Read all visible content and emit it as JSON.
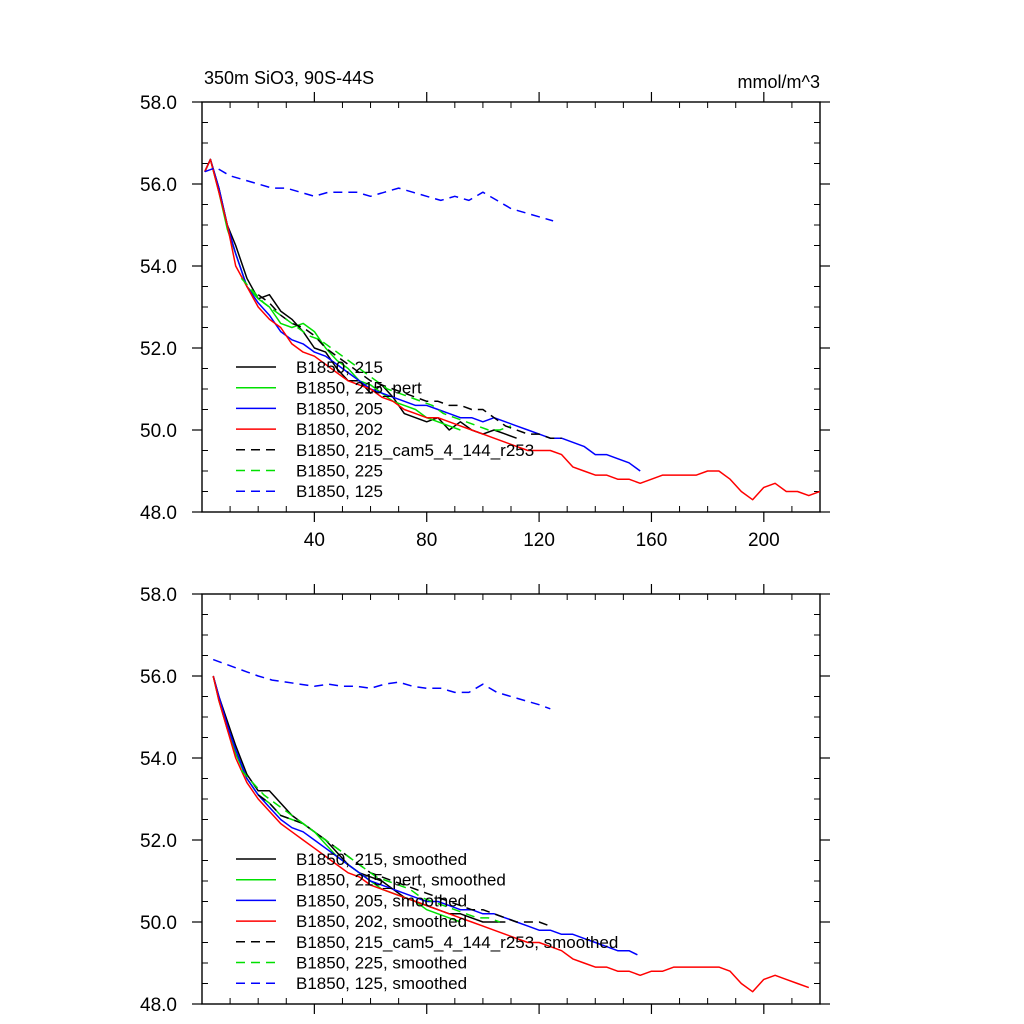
{
  "chart_data": [
    {
      "type": "line",
      "title_left": "350m SiO3, 90S-44S",
      "title_right": "mmol/m^3",
      "xlim": [
        0,
        220
      ],
      "ylim": [
        48.0,
        58.0
      ],
      "x_ticks": [
        40,
        80,
        120,
        160,
        200
      ],
      "x_tick_labels": [
        "40",
        "80",
        "120",
        "160",
        "200"
      ],
      "y_ticks": [
        48,
        50,
        52,
        54,
        56,
        58
      ],
      "y_tick_labels": [
        "48.0",
        "50.0",
        "52.0",
        "54.0",
        "56.0",
        "58.0"
      ],
      "legend_position": "bottom-left",
      "series": [
        {
          "name": "B1850, 215",
          "color": "#000000",
          "dashed": false,
          "x": [
            1,
            3,
            6,
            9,
            12,
            16,
            20,
            24,
            28,
            32,
            36,
            40,
            44,
            48,
            52,
            56,
            60,
            64,
            68,
            72,
            76,
            80,
            84,
            88,
            92,
            96,
            100,
            104,
            108,
            112
          ],
          "y": [
            56.3,
            56.6,
            55.9,
            55.0,
            54.5,
            53.7,
            53.2,
            53.3,
            52.9,
            52.7,
            52.4,
            52.0,
            51.9,
            51.5,
            51.2,
            51.2,
            50.9,
            51.1,
            50.8,
            50.4,
            50.3,
            50.2,
            50.3,
            50.0,
            50.2,
            50.0,
            49.9,
            50.0,
            49.9,
            49.8
          ]
        },
        {
          "name": "B1850, 215_pert",
          "color": "#00e000",
          "dashed": false,
          "x": [
            1,
            3,
            6,
            9,
            12,
            16,
            20,
            24,
            28,
            32,
            36,
            40,
            44,
            48,
            52,
            56,
            60,
            64,
            68,
            72,
            76,
            80,
            84,
            88,
            92
          ],
          "y": [
            56.3,
            56.6,
            55.8,
            54.9,
            54.3,
            53.5,
            53.2,
            53.0,
            52.6,
            52.5,
            52.6,
            52.4,
            52.0,
            51.7,
            51.5,
            51.2,
            51.1,
            50.9,
            50.7,
            50.6,
            50.5,
            50.3,
            50.2,
            50.1,
            50.0
          ]
        },
        {
          "name": "B1850, 205",
          "color": "#0000ff",
          "dashed": false,
          "x": [
            1,
            3,
            6,
            9,
            12,
            16,
            20,
            24,
            28,
            32,
            36,
            40,
            44,
            48,
            52,
            56,
            60,
            64,
            68,
            72,
            76,
            80,
            84,
            88,
            92,
            96,
            100,
            104,
            108,
            112,
            116,
            120,
            124,
            128,
            132,
            136,
            140,
            144,
            148,
            152,
            156
          ],
          "y": [
            56.3,
            56.6,
            55.9,
            55.0,
            54.3,
            53.5,
            53.1,
            52.8,
            52.4,
            52.2,
            52.1,
            51.9,
            51.8,
            51.6,
            51.4,
            51.2,
            51.0,
            50.9,
            50.8,
            50.7,
            50.6,
            50.6,
            50.5,
            50.4,
            50.3,
            50.3,
            50.2,
            50.3,
            50.2,
            50.1,
            50.0,
            49.9,
            49.8,
            49.8,
            49.7,
            49.6,
            49.4,
            49.4,
            49.3,
            49.2,
            49.0
          ]
        },
        {
          "name": "B1850, 202",
          "color": "#ff0000",
          "dashed": false,
          "x": [
            1,
            3,
            6,
            9,
            12,
            16,
            20,
            24,
            28,
            32,
            36,
            40,
            44,
            48,
            52,
            56,
            60,
            64,
            68,
            72,
            76,
            80,
            84,
            88,
            92,
            96,
            100,
            104,
            108,
            112,
            116,
            120,
            124,
            128,
            132,
            136,
            140,
            144,
            148,
            152,
            156,
            160,
            164,
            168,
            172,
            176,
            180,
            184,
            188,
            192,
            196,
            200,
            204,
            208,
            212,
            216,
            220
          ],
          "y": [
            56.3,
            56.6,
            55.8,
            55.0,
            54.0,
            53.5,
            53.0,
            52.7,
            52.5,
            52.1,
            51.9,
            51.8,
            51.6,
            51.4,
            51.2,
            51.1,
            51.0,
            50.8,
            50.7,
            50.5,
            50.4,
            50.3,
            50.3,
            50.2,
            50.1,
            50.0,
            49.9,
            49.8,
            49.7,
            49.6,
            49.5,
            49.5,
            49.5,
            49.4,
            49.1,
            49.0,
            48.9,
            48.9,
            48.8,
            48.8,
            48.7,
            48.8,
            48.9,
            48.9,
            48.9,
            48.9,
            49.0,
            49.0,
            48.8,
            48.5,
            48.3,
            48.6,
            48.7,
            48.5,
            48.5,
            48.4,
            48.5
          ]
        },
        {
          "name": "B1850, 215_cam5_4_144_r253",
          "color": "#000000",
          "dashed": true,
          "x": [
            20,
            24,
            28,
            32,
            36,
            40,
            44,
            48,
            52,
            56,
            60,
            64,
            68,
            72,
            76,
            80,
            84,
            88,
            92,
            96,
            100,
            104,
            108,
            112,
            116,
            120,
            124,
            128
          ],
          "y": [
            53.3,
            53.1,
            52.8,
            52.6,
            52.5,
            52.3,
            52.0,
            51.8,
            51.6,
            51.4,
            51.2,
            51.1,
            51.0,
            50.9,
            50.8,
            50.7,
            50.7,
            50.6,
            50.6,
            50.5,
            50.5,
            50.3,
            50.1,
            50.0,
            49.9,
            49.9,
            49.8,
            49.8
          ]
        },
        {
          "name": "B1850, 225",
          "color": "#00e000",
          "dashed": true,
          "x": [
            14,
            18,
            22,
            26,
            30,
            34,
            38,
            42,
            46,
            50,
            54,
            58,
            62,
            66,
            70,
            74,
            78,
            82,
            86,
            90,
            94,
            98,
            102,
            106,
            110
          ],
          "y": [
            53.7,
            53.4,
            53.1,
            52.9,
            52.7,
            52.5,
            52.3,
            52.2,
            52.0,
            51.8,
            51.6,
            51.4,
            51.2,
            51.0,
            50.9,
            50.8,
            50.7,
            50.6,
            50.4,
            50.3,
            50.2,
            50.1,
            50.0,
            50.0,
            50.1
          ]
        },
        {
          "name": "B1850, 125",
          "color": "#0000ff",
          "dashed": true,
          "x": [
            1,
            5,
            10,
            15,
            20,
            25,
            30,
            35,
            40,
            45,
            50,
            55,
            60,
            65,
            70,
            75,
            80,
            85,
            90,
            95,
            100,
            105,
            110,
            115,
            120,
            125
          ],
          "y": [
            56.3,
            56.4,
            56.2,
            56.1,
            56.0,
            55.9,
            55.9,
            55.8,
            55.7,
            55.8,
            55.8,
            55.8,
            55.7,
            55.8,
            55.9,
            55.8,
            55.7,
            55.6,
            55.7,
            55.6,
            55.8,
            55.6,
            55.4,
            55.3,
            55.2,
            55.1
          ]
        }
      ]
    },
    {
      "type": "line",
      "xlim": [
        0,
        220
      ],
      "ylim": [
        48.0,
        58.0
      ],
      "x_ticks": [
        40,
        80,
        120,
        160,
        200
      ],
      "y_ticks": [
        48,
        50,
        52,
        54,
        56,
        58
      ],
      "y_tick_labels": [
        "48.0",
        "50.0",
        "52.0",
        "54.0",
        "56.0",
        "58.0"
      ],
      "legend_position": "bottom-left",
      "series": [
        {
          "name": "B1850, 215, smoothed",
          "color": "#000000",
          "dashed": false,
          "x": [
            4,
            6,
            9,
            12,
            16,
            20,
            24,
            28,
            32,
            36,
            40,
            44,
            48,
            52,
            56,
            60,
            64,
            68,
            72,
            76,
            80,
            84,
            88,
            92,
            96,
            100,
            104,
            108
          ],
          "y": [
            56.0,
            55.5,
            54.9,
            54.3,
            53.6,
            53.2,
            53.2,
            52.9,
            52.6,
            52.4,
            52.2,
            52.0,
            51.7,
            51.4,
            51.2,
            51.1,
            51.0,
            50.8,
            50.6,
            50.5,
            50.4,
            50.3,
            50.2,
            50.2,
            50.1,
            50.0,
            50.0,
            50.0
          ]
        },
        {
          "name": "B1850, 215_pert, smoothed",
          "color": "#00e000",
          "dashed": false,
          "x": [
            4,
            6,
            9,
            12,
            16,
            20,
            24,
            28,
            32,
            36,
            40,
            44,
            48,
            52,
            56,
            60,
            64,
            68,
            72,
            76,
            80,
            84,
            88,
            92
          ],
          "y": [
            56.0,
            55.4,
            54.7,
            54.1,
            53.5,
            53.1,
            52.9,
            52.6,
            52.5,
            52.4,
            52.2,
            51.9,
            51.6,
            51.4,
            51.2,
            51.0,
            50.8,
            50.7,
            50.6,
            50.5,
            50.3,
            50.2,
            50.1,
            50.0
          ]
        },
        {
          "name": "B1850, 205, smoothed",
          "color": "#0000ff",
          "dashed": false,
          "x": [
            4,
            6,
            9,
            12,
            16,
            20,
            24,
            28,
            32,
            36,
            40,
            44,
            48,
            52,
            56,
            60,
            64,
            68,
            72,
            76,
            80,
            84,
            88,
            92,
            96,
            100,
            104,
            108,
            112,
            116,
            120,
            124,
            128,
            132,
            136,
            140,
            144,
            148,
            152,
            155
          ],
          "y": [
            56.0,
            55.5,
            54.8,
            54.2,
            53.5,
            53.1,
            52.8,
            52.5,
            52.3,
            52.2,
            52.0,
            51.8,
            51.6,
            51.4,
            51.2,
            51.0,
            50.9,
            50.8,
            50.7,
            50.6,
            50.5,
            50.5,
            50.4,
            50.3,
            50.3,
            50.2,
            50.2,
            50.1,
            50.0,
            49.9,
            49.8,
            49.8,
            49.7,
            49.7,
            49.6,
            49.5,
            49.4,
            49.3,
            49.3,
            49.2
          ]
        },
        {
          "name": "B1850, 202, smoothed",
          "color": "#ff0000",
          "dashed": false,
          "x": [
            4,
            6,
            9,
            12,
            16,
            20,
            24,
            28,
            32,
            36,
            40,
            44,
            48,
            52,
            56,
            60,
            64,
            68,
            72,
            76,
            80,
            84,
            88,
            92,
            96,
            100,
            104,
            108,
            112,
            116,
            120,
            124,
            128,
            132,
            136,
            140,
            144,
            148,
            152,
            156,
            160,
            164,
            168,
            172,
            176,
            180,
            184,
            188,
            192,
            196,
            200,
            204,
            208,
            212,
            216
          ],
          "y": [
            56.0,
            55.4,
            54.7,
            54.0,
            53.4,
            53.0,
            52.7,
            52.4,
            52.2,
            52.0,
            51.8,
            51.6,
            51.4,
            51.2,
            51.1,
            50.9,
            50.8,
            50.7,
            50.6,
            50.5,
            50.4,
            50.3,
            50.2,
            50.1,
            50.0,
            49.9,
            49.8,
            49.7,
            49.6,
            49.5,
            49.5,
            49.4,
            49.3,
            49.1,
            49.0,
            48.9,
            48.9,
            48.8,
            48.8,
            48.7,
            48.8,
            48.8,
            48.9,
            48.9,
            48.9,
            48.9,
            48.9,
            48.8,
            48.5,
            48.3,
            48.6,
            48.7,
            48.6,
            48.5,
            48.4
          ]
        },
        {
          "name": "B1850, 215_cam5_4_144_r253, smoothed",
          "color": "#000000",
          "dashed": true,
          "x": [
            20,
            24,
            28,
            32,
            36,
            40,
            44,
            48,
            52,
            56,
            60,
            64,
            68,
            72,
            76,
            80,
            84,
            88,
            92,
            96,
            100,
            104,
            108,
            112,
            116,
            120,
            124
          ],
          "y": [
            53.1,
            52.9,
            52.6,
            52.5,
            52.4,
            52.2,
            52.0,
            51.8,
            51.6,
            51.4,
            51.2,
            51.1,
            51.0,
            50.9,
            50.8,
            50.7,
            50.6,
            50.5,
            50.4,
            50.3,
            50.3,
            50.2,
            50.1,
            50.0,
            50.0,
            50.0,
            49.9
          ]
        },
        {
          "name": "B1850, 225, smoothed",
          "color": "#00e000",
          "dashed": true,
          "x": [
            14,
            18,
            22,
            26,
            30,
            34,
            38,
            42,
            46,
            50,
            54,
            58,
            62,
            66,
            70,
            74,
            78,
            82,
            86,
            90,
            94,
            98,
            102,
            106
          ],
          "y": [
            53.7,
            53.4,
            53.1,
            52.9,
            52.7,
            52.5,
            52.3,
            52.1,
            51.9,
            51.7,
            51.5,
            51.3,
            51.1,
            51.0,
            50.9,
            50.8,
            50.6,
            50.5,
            50.4,
            50.3,
            50.2,
            50.1,
            50.1,
            50.0
          ]
        },
        {
          "name": "B1850, 125, smoothed",
          "color": "#0000ff",
          "dashed": true,
          "x": [
            4,
            8,
            12,
            16,
            20,
            25,
            30,
            35,
            40,
            45,
            50,
            55,
            60,
            65,
            70,
            75,
            80,
            85,
            90,
            95,
            100,
            105,
            110,
            115,
            120,
            124
          ],
          "y": [
            56.4,
            56.3,
            56.2,
            56.1,
            56.0,
            55.9,
            55.85,
            55.8,
            55.75,
            55.8,
            55.75,
            55.75,
            55.7,
            55.8,
            55.85,
            55.75,
            55.7,
            55.7,
            55.6,
            55.6,
            55.8,
            55.6,
            55.5,
            55.4,
            55.3,
            55.2
          ]
        }
      ]
    }
  ]
}
